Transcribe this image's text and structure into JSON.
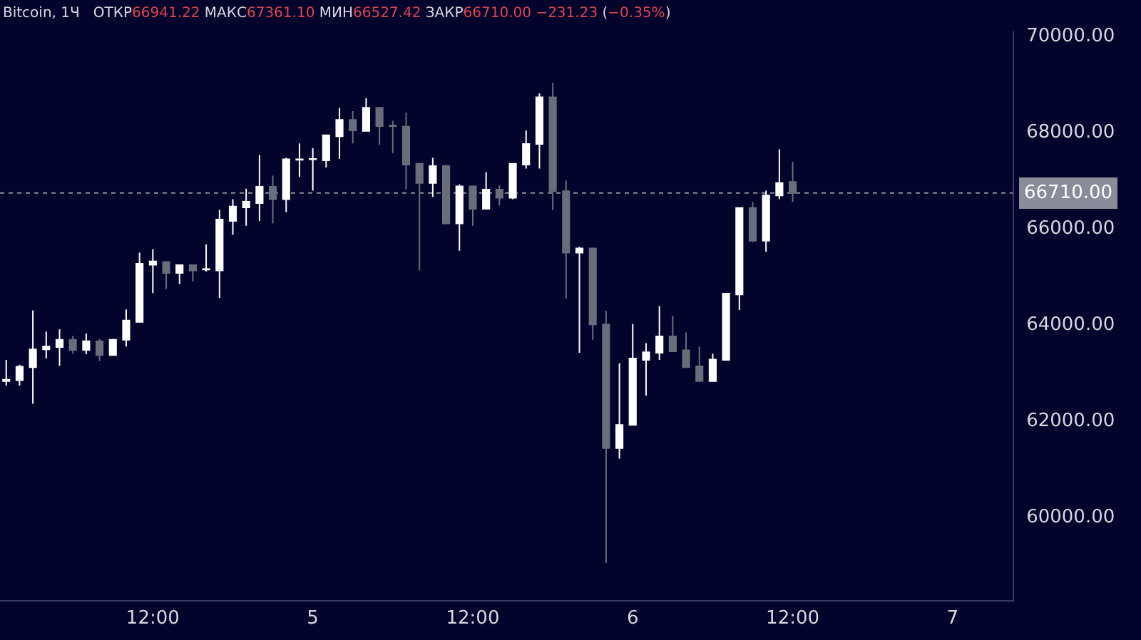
{
  "chart_data": {
    "type": "candlestick",
    "title": "Bitcoin, 1Ч",
    "subtitle": "ОТКР66941.22 МАКС67361.10 МИН66527.42 ЗАКР66710.00 −231.23 (−0.35%)",
    "x": [
      "--03-04T01:00",
      "--03-04T02:00",
      "--03-04T03:00",
      "--03-04T04:00",
      "--03-04T05:00",
      "--03-04T06:00",
      "--03-04T07:00",
      "--03-04T08:00",
      "--03-04T09:00",
      "--03-04T10:00",
      "--03-04T11:00",
      "--03-04T12:00",
      "--03-04T13:00",
      "--03-04T14:00",
      "--03-04T15:00",
      "--03-04T16:00",
      "--03-04T17:00",
      "--03-04T18:00",
      "--03-04T19:00",
      "--03-04T20:00",
      "--03-04T21:00",
      "--03-04T22:00",
      "--03-04T23:00",
      "--03-05T00:00",
      "--03-05T01:00",
      "--03-05T02:00",
      "--03-05T03:00",
      "--03-05T04:00",
      "--03-05T05:00",
      "--03-05T06:00",
      "--03-05T07:00",
      "--03-05T08:00",
      "--03-05T09:00",
      "--03-05T10:00",
      "--03-05T11:00",
      "--03-05T12:00",
      "--03-05T13:00",
      "--03-05T14:00",
      "--03-05T15:00",
      "--03-05T16:00",
      "--03-05T17:00",
      "--03-05T18:00",
      "--03-05T19:00",
      "--03-05T20:00",
      "--03-05T21:00",
      "--03-05T22:00",
      "--03-05T23:00",
      "--03-06T00:00",
      "--03-06T01:00",
      "--03-06T02:00",
      "--03-06T03:00",
      "--03-06T04:00",
      "--03-06T05:00",
      "--03-06T06:00",
      "--03-06T07:00",
      "--03-06T08:00",
      "--03-06T09:00",
      "--03-06T10:00",
      "--03-06T11:00",
      "--03-06T12:00"
    ],
    "ohlc": [
      [
        62800,
        63240,
        62710,
        62830
      ],
      [
        62820,
        63140,
        62710,
        63100
      ],
      [
        63090,
        64270,
        62330,
        63460
      ],
      [
        63460,
        63830,
        63270,
        63520
      ],
      [
        63510,
        63880,
        63120,
        63660
      ],
      [
        63660,
        63740,
        63370,
        63450
      ],
      [
        63450,
        63790,
        63360,
        63630
      ],
      [
        63630,
        63680,
        63220,
        63340
      ],
      [
        63340,
        63680,
        63340,
        63660
      ],
      [
        63660,
        64290,
        63520,
        64060
      ],
      [
        64030,
        65470,
        64030,
        65240
      ],
      [
        65220,
        65540,
        64630,
        65290
      ],
      [
        65280,
        65280,
        64720,
        65050
      ],
      [
        65050,
        65210,
        64820,
        65210
      ],
      [
        65210,
        65210,
        64870,
        65100
      ],
      [
        65120,
        65640,
        65080,
        65130
      ],
      [
        65100,
        66360,
        64530,
        66160
      ],
      [
        66130,
        66580,
        65840,
        66430
      ],
      [
        66410,
        66800,
        66030,
        66530
      ],
      [
        66500,
        67500,
        66130,
        66840
      ],
      [
        66840,
        67070,
        66080,
        66580
      ],
      [
        66580,
        67440,
        66310,
        67410
      ],
      [
        67400,
        67740,
        67050,
        67410
      ],
      [
        67410,
        67640,
        66760,
        67420
      ],
      [
        67390,
        67910,
        67240,
        67910
      ],
      [
        67890,
        68480,
        67420,
        68230
      ],
      [
        68230,
        68410,
        67740,
        68010
      ],
      [
        68000,
        68680,
        67990,
        68480
      ],
      [
        68480,
        68480,
        67710,
        68100
      ],
      [
        68110,
        68210,
        67540,
        68100
      ],
      [
        68090,
        68380,
        66780,
        67300
      ],
      [
        67320,
        67320,
        65100,
        66920
      ],
      [
        66920,
        67440,
        66630,
        67270
      ],
      [
        67270,
        67300,
        66080,
        66080
      ],
      [
        66080,
        66890,
        65510,
        66850
      ],
      [
        66850,
        66850,
        66030,
        66380
      ],
      [
        66380,
        67140,
        66380,
        66780
      ],
      [
        66780,
        66870,
        66450,
        66610
      ],
      [
        66610,
        67320,
        66580,
        67320
      ],
      [
        67300,
        68010,
        67220,
        67730
      ],
      [
        67730,
        68780,
        67220,
        68700
      ],
      [
        68700,
        69000,
        66360,
        66750
      ],
      [
        66750,
        66970,
        64520,
        65470
      ],
      [
        65470,
        65590,
        63390,
        65560
      ],
      [
        65560,
        65560,
        63660,
        63980
      ],
      [
        63980,
        64260,
        59020,
        61410
      ],
      [
        61410,
        63170,
        61190,
        61890
      ],
      [
        61890,
        63990,
        61890,
        63270
      ],
      [
        63240,
        63590,
        62500,
        63400
      ],
      [
        63390,
        64360,
        63240,
        63730
      ],
      [
        63730,
        64160,
        63420,
        63420
      ],
      [
        63440,
        63810,
        63090,
        63090
      ],
      [
        63110,
        63520,
        62800,
        62800
      ],
      [
        62800,
        63370,
        62800,
        63250
      ],
      [
        63240,
        64620,
        63240,
        64620
      ],
      [
        64600,
        66400,
        64280,
        66400
      ],
      [
        66400,
        66530,
        65690,
        65720
      ],
      [
        65720,
        66760,
        65490,
        66660
      ],
      [
        66660,
        67620,
        66580,
        66920
      ],
      [
        66941.22,
        67361.1,
        66527.42,
        66710.0
      ]
    ],
    "colors": [
      "#ffffff",
      "#ffffff",
      "#ffffff",
      "#ffffff",
      "#ffffff",
      "#6a6d7a",
      "#ffffff",
      "#6a6d7a",
      "#ffffff",
      "#ffffff",
      "#ffffff",
      "#ffffff",
      "#6a6d7a",
      "#ffffff",
      "#6a6d7a",
      "#ffffff",
      "#ffffff",
      "#ffffff",
      "#ffffff",
      "#ffffff",
      "#6a6d7a",
      "#ffffff",
      "#ffffff",
      "#ffffff",
      "#ffffff",
      "#ffffff",
      "#6a6d7a",
      "#ffffff",
      "#6a6d7a",
      "#6a6d7a",
      "#6a6d7a",
      "#6a6d7a",
      "#ffffff",
      "#6a6d7a",
      "#ffffff",
      "#6a6d7a",
      "#ffffff",
      "#6a6d7a",
      "#ffffff",
      "#ffffff",
      "#ffffff",
      "#6a6d7a",
      "#6a6d7a",
      "#ffffff",
      "#6a6d7a",
      "#6a6d7a",
      "#ffffff",
      "#ffffff",
      "#ffffff",
      "#ffffff",
      "#6a6d7a",
      "#6a6d7a",
      "#6a6d7a",
      "#ffffff",
      "#ffffff",
      "#ffffff",
      "#6a6d7a",
      "#ffffff",
      "#ffffff",
      "#6a6d7a"
    ],
    "xlim": [
      "--03-04T00:32",
      "--03-07T04:30"
    ],
    "xticks": [
      {
        "value": "--03-04T12:00",
        "label": "12:00"
      },
      {
        "value": "--03-05",
        "label": "5"
      },
      {
        "value": "--03-05T12:00",
        "label": "12:00"
      },
      {
        "value": "--03-06",
        "label": "6"
      },
      {
        "value": "--03-06T12:00",
        "label": "12:00"
      },
      {
        "value": "--03-07",
        "label": "7"
      }
    ],
    "ylim": [
      58250,
      70070
    ],
    "yticks": [
      {
        "value": 60000,
        "label": "60000.00"
      },
      {
        "value": 62000,
        "label": "62000.00"
      },
      {
        "value": 64000,
        "label": "64000.00"
      },
      {
        "value": 66000,
        "label": "66000.00"
      },
      {
        "value": 68000,
        "label": "68000.00"
      },
      {
        "value": 70000,
        "label": "70000.00"
      }
    ],
    "ref_lines": [
      {
        "axis": "y",
        "value": 66710.0,
        "label": "66710.00",
        "color": "#8a8d99",
        "line_style": "dotted"
      }
    ],
    "grid": false,
    "legend": false
  }
}
